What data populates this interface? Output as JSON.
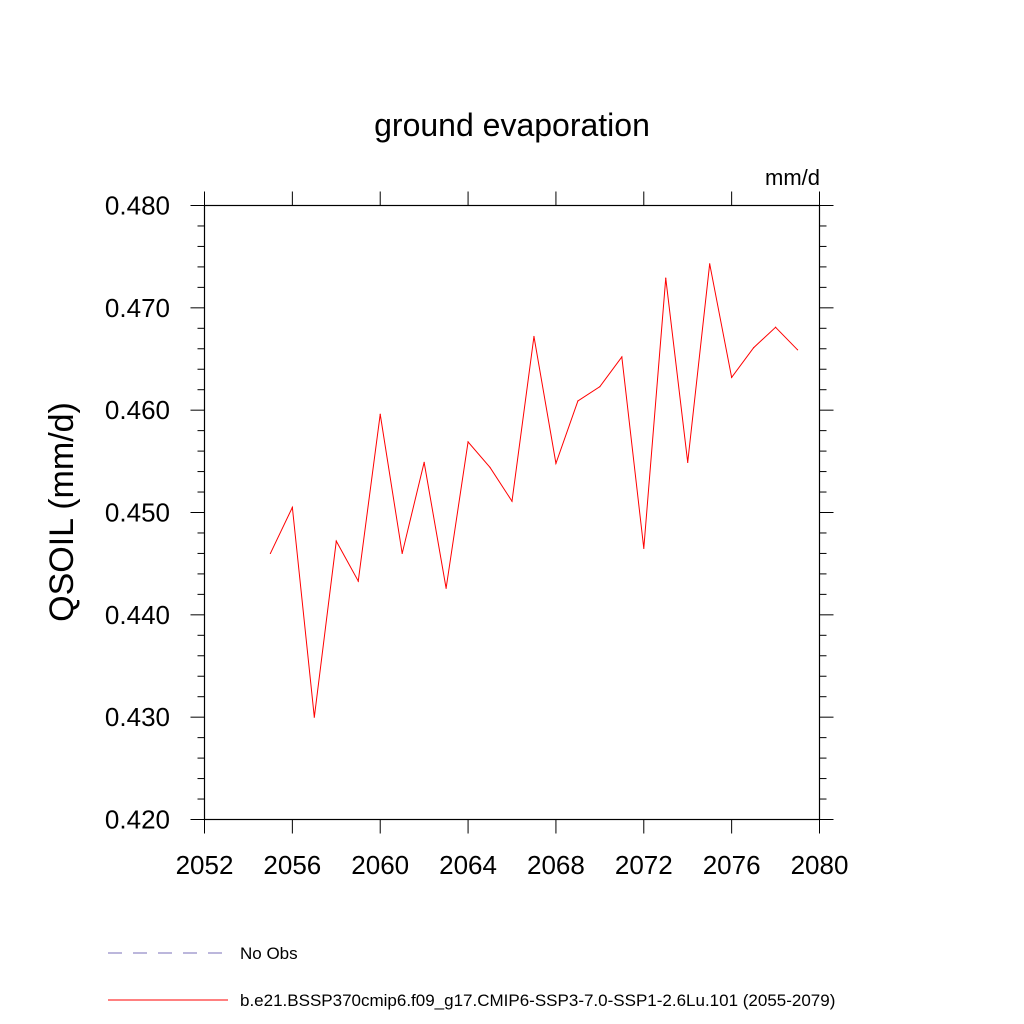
{
  "chart_data": {
    "type": "line",
    "title": "ground evaporation",
    "units_label": "mm/d",
    "ylabel": "QSOIL  (mm/d)",
    "xlabel": "",
    "xlim": [
      2052,
      2080
    ],
    "ylim": [
      0.42,
      0.48
    ],
    "x_ticks": [
      2052,
      2056,
      2060,
      2064,
      2068,
      2072,
      2076,
      2080
    ],
    "x_tick_labels": [
      "2052",
      "2056",
      "2060",
      "2064",
      "2068",
      "2072",
      "2076",
      "2080"
    ],
    "y_ticks": [
      0.42,
      0.43,
      0.44,
      0.45,
      0.46,
      0.47,
      0.48
    ],
    "y_tick_labels": [
      "0.420",
      "0.430",
      "0.440",
      "0.450",
      "0.460",
      "0.470",
      "0.480"
    ],
    "grid": false,
    "legend_position": "bottom",
    "series": [
      {
        "name": "b.e21.BSSP370cmip6.f09_g17.CMIP6-SSP3-7.0-SSP1-2.6Lu.101 (2055-2079)",
        "color": "#ff0000",
        "dash": "solid",
        "x": [
          2055,
          2056,
          2057,
          2058,
          2059,
          2060,
          2061,
          2062,
          2063,
          2064,
          2065,
          2066,
          2067,
          2068,
          2069,
          2070,
          2071,
          2072,
          2073,
          2074,
          2075,
          2076,
          2077,
          2078,
          2079
        ],
        "values": [
          0.446,
          0.4505,
          0.43,
          0.4472,
          0.4433,
          0.4596,
          0.446,
          0.4549,
          0.4426,
          0.4569,
          0.4544,
          0.4511,
          0.4672,
          0.4548,
          0.4609,
          0.4623,
          0.4652,
          0.4465,
          0.4729,
          0.4549,
          0.4743,
          0.4632,
          0.4661,
          0.4681,
          0.4659
        ]
      }
    ],
    "legend": [
      {
        "label": "No Obs",
        "color": "#7a6fb8",
        "dash": "dashed"
      },
      {
        "label": "b.e21.BSSP370cmip6.f09_g17.CMIP6-SSP3-7.0-SSP1-2.6Lu.101 (2055-2079)",
        "color": "#ff0000",
        "dash": "solid"
      }
    ]
  }
}
